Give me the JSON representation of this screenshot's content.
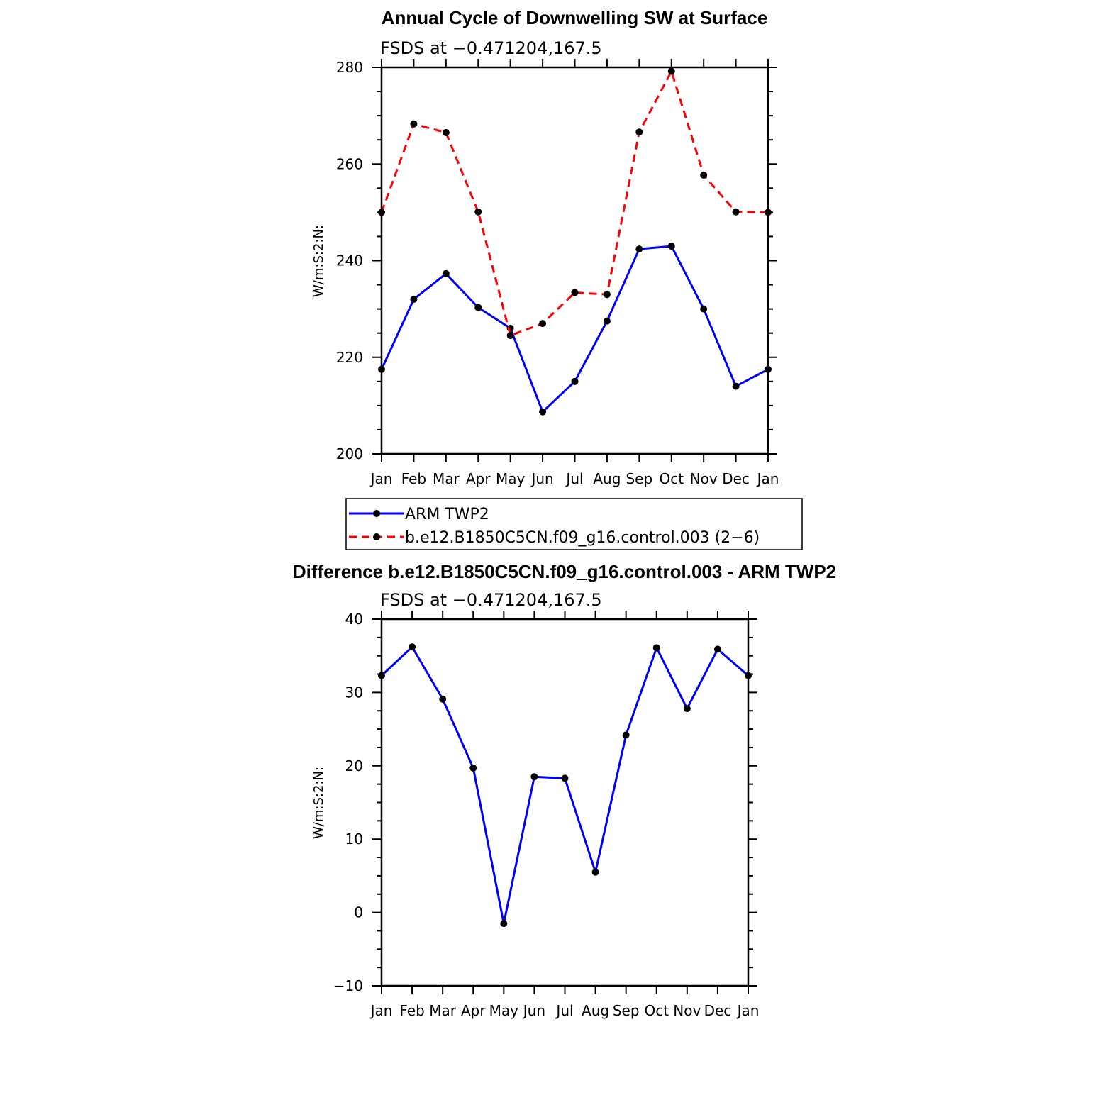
{
  "chart_data": [
    {
      "type": "line",
      "title": "Annual Cycle of Downwelling SW at Surface",
      "subtitle": "FSDS at −0.471204,167.5",
      "ylabel": "W/m:S:2:N:",
      "xlabel": "",
      "categories": [
        "Jan",
        "Feb",
        "Mar",
        "Apr",
        "May",
        "Jun",
        "Jul",
        "Aug",
        "Sep",
        "Oct",
        "Nov",
        "Dec",
        "Jan"
      ],
      "ylim": [
        200,
        280
      ],
      "yticks": [
        200,
        220,
        240,
        260,
        280
      ],
      "series": [
        {
          "name": "ARM TWP2",
          "color": "#0000ff",
          "dash": "solid",
          "values": [
            217.5,
            232,
            237.3,
            230.3,
            226,
            208.7,
            215,
            227.5,
            242.4,
            243,
            230,
            214,
            217.5
          ]
        },
        {
          "name": "b.e12.B1850C5CN.f09_g16.control.003 (2−6)",
          "color": "#ff0000",
          "dash": "dashed",
          "values": [
            250,
            268.3,
            266.5,
            250.1,
            224.5,
            227,
            233.4,
            233,
            266.6,
            279.2,
            257.7,
            250.1,
            250
          ]
        }
      ],
      "legend": "below"
    },
    {
      "type": "line",
      "title": "Difference b.e12.B1850C5CN.f09_g16.control.003 - ARM TWP2",
      "subtitle": "FSDS at −0.471204,167.5",
      "ylabel": "W/m:S:2:N:",
      "xlabel": "",
      "categories": [
        "Jan",
        "Feb",
        "Mar",
        "Apr",
        "May",
        "Jun",
        "Jul",
        "Aug",
        "Sep",
        "Oct",
        "Nov",
        "Dec",
        "Jan"
      ],
      "ylim": [
        -10,
        40
      ],
      "yticks": [
        -10,
        0,
        10,
        20,
        30,
        40
      ],
      "ytick_labels": [
        "−10",
        "0",
        "10",
        "20",
        "30",
        "40"
      ],
      "series": [
        {
          "color": "#0000ff",
          "dash": "solid",
          "values": [
            32.3,
            36.2,
            29.1,
            19.7,
            -1.5,
            18.5,
            18.3,
            5.5,
            24.2,
            36.1,
            27.8,
            35.9,
            32.3
          ]
        }
      ]
    }
  ]
}
